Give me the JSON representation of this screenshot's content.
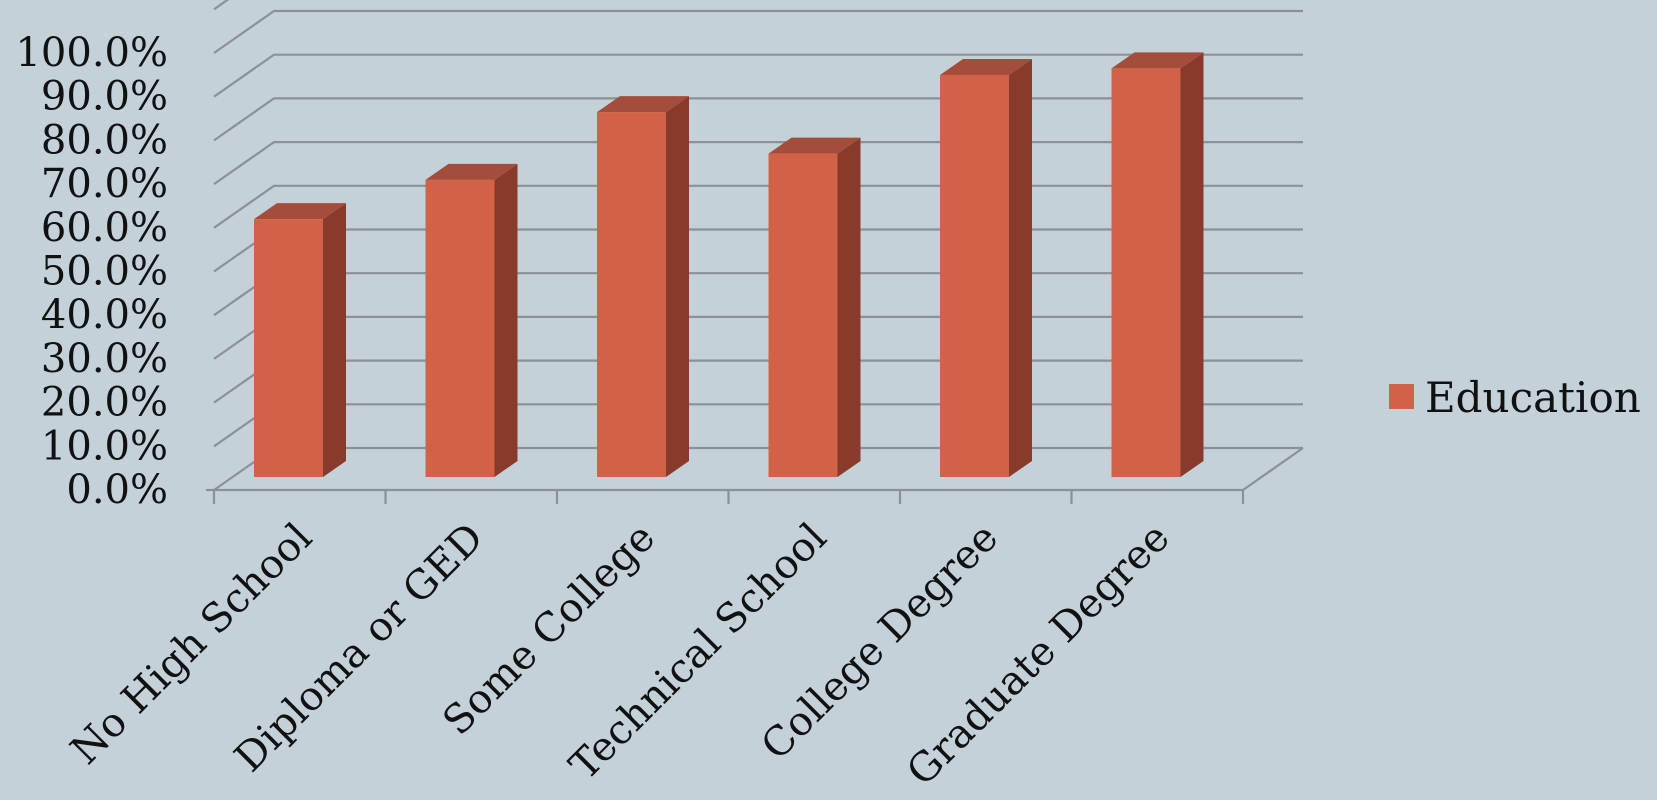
{
  "chart_data": {
    "type": "bar",
    "categories": [
      "No High School",
      "Diploma or GED",
      "Some College",
      "Technical School",
      "College Degree",
      "Graduate Degree"
    ],
    "series": [
      {
        "name": "Education",
        "values": [
          62.0,
          71.0,
          86.5,
          77.0,
          95.0,
          96.5
        ]
      }
    ],
    "y_ticks": [
      "0.0%",
      "10.0%",
      "20.0%",
      "30.0%",
      "40.0%",
      "50.0%",
      "60.0%",
      "70.0%",
      "80.0%",
      "90.0%",
      "100.0%"
    ],
    "ylim": [
      0,
      110
    ],
    "grid": true,
    "legend_position": "right",
    "style": "3d-column",
    "colors": {
      "bar_front": "#d16248",
      "bar_side": "#883b2c",
      "bar_top": "#a34d3a",
      "gridline": "#8b9195",
      "background": "#c5d1d8",
      "text": "#111111"
    }
  }
}
